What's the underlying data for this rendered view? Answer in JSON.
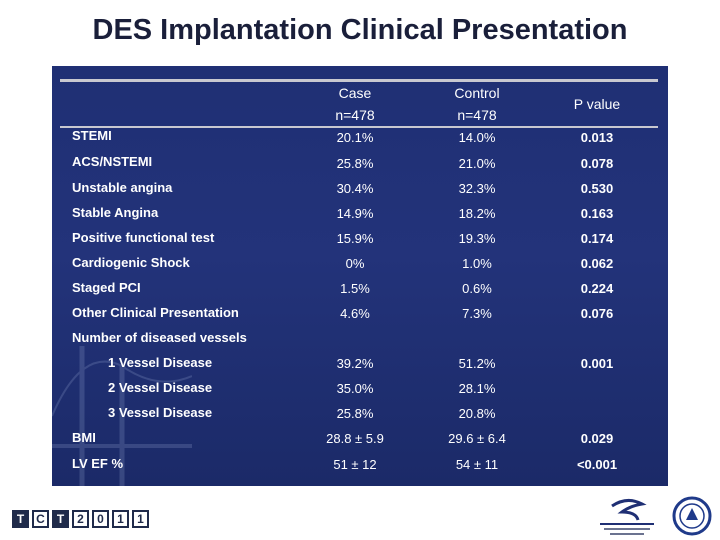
{
  "title": "DES Implantation Clinical Presentation",
  "headers": {
    "case_line1": "Case",
    "case_line2": "n=478",
    "control_line1": "Control",
    "control_line2": "n=478",
    "pvalue": "P value"
  },
  "rows": [
    {
      "label": "STEMI",
      "case": "20.1%",
      "control": "14.0%",
      "p": "0.013"
    },
    {
      "label": "ACS/NSTEMI",
      "case": "25.8%",
      "control": "21.0%",
      "p": "0.078"
    },
    {
      "label": "Unstable angina",
      "case": "30.4%",
      "control": "32.3%",
      "p": "0.530"
    },
    {
      "label": "Stable Angina",
      "case": "14.9%",
      "control": "18.2%",
      "p": "0.163"
    },
    {
      "label": "Positive functional test",
      "case": "15.9%",
      "control": "19.3%",
      "p": "0.174"
    },
    {
      "label": "Cardiogenic Shock",
      "case": "0%",
      "control": "1.0%",
      "p": "0.062"
    },
    {
      "label": "Staged PCI",
      "case": "1.5%",
      "control": "0.6%",
      "p": "0.224"
    },
    {
      "label": "Other Clinical Presentation",
      "case": "4.6%",
      "control": "7.3%",
      "p": "0.076"
    }
  ],
  "vessels": {
    "heading": "Number of diseased vessels",
    "p": "0.001",
    "items": [
      {
        "label": "1 Vessel Disease",
        "case": "39.2%",
        "control": "51.2%"
      },
      {
        "label": "2 Vessel Disease",
        "case": "35.0%",
        "control": "28.1%"
      },
      {
        "label": "3 Vessel Disease",
        "case": "25.8%",
        "control": "20.8%"
      }
    ]
  },
  "bottom_rows": [
    {
      "label": "BMI",
      "case": "28.8 ± 5.9",
      "control": "29.6 ± 6.4",
      "p": "0.029"
    },
    {
      "label": "LV EF %",
      "case": "51 ± 12",
      "control": "54 ± 11",
      "p": "<0.001"
    }
  ],
  "footer": {
    "tct_chars": [
      "T",
      "C",
      "T",
      "2",
      "0",
      "1",
      "1"
    ]
  },
  "colors": {
    "panel": "#1f2f74",
    "title": "#1a1f3a",
    "rule": "#c8c8d0"
  }
}
